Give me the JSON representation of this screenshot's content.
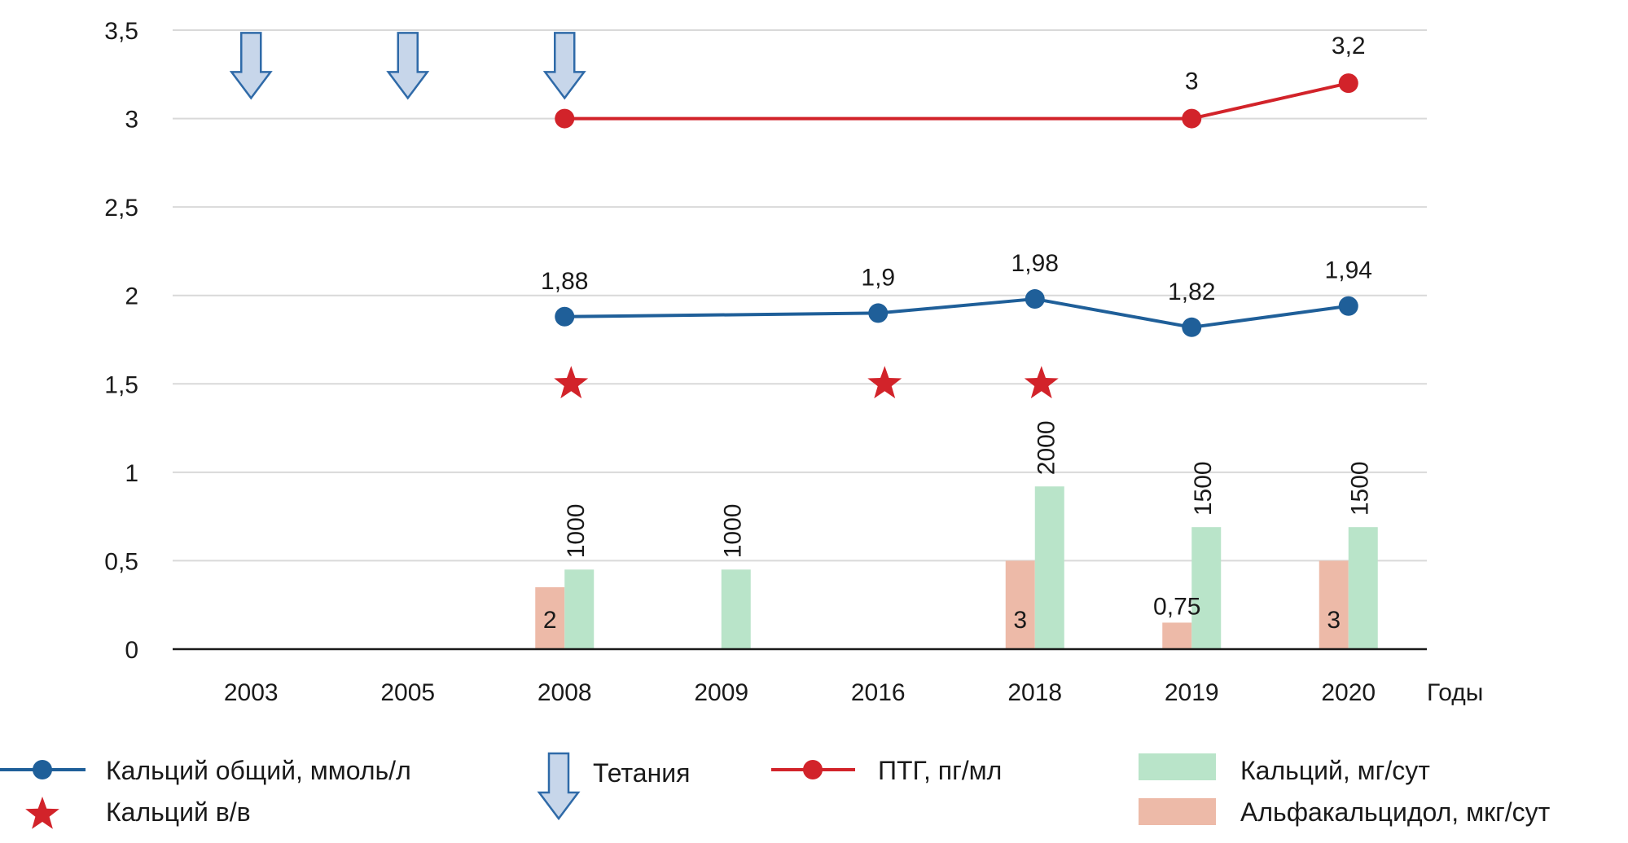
{
  "chart_data": {
    "type": "bar",
    "categories": [
      "2003",
      "2005",
      "2008",
      "2009",
      "2016",
      "2018",
      "2019",
      "2020"
    ],
    "xlabel": "Годы",
    "ylabel": "",
    "ylim": [
      0,
      3.5
    ],
    "y_ticks": [
      0,
      0.5,
      1,
      1.5,
      2,
      2.5,
      3,
      3.5
    ],
    "y_tick_labels": [
      "0",
      "0,5",
      "1",
      "1,5",
      "2",
      "2,5",
      "3",
      "3,5"
    ],
    "grid": true,
    "colors": {
      "calcium_total": "#1f5f99",
      "ptg": "#d2232a",
      "calcium_iv": "#d2232a",
      "calcium_mg": "#b9e4c9",
      "alfacalcidol": "#edbaa8",
      "tetany_fill": "#c7d6ea",
      "tetany_stroke": "#2f6aa8",
      "grid": "#d9d9d9",
      "axis": "#1a1a1a"
    },
    "series": [
      {
        "name": "Альфакальцидол, мкг/сут",
        "kind": "bar",
        "values": [
          null,
          null,
          0.35,
          null,
          null,
          0.5,
          0.15,
          0.5
        ],
        "labels": [
          null,
          null,
          "2",
          null,
          null,
          "3",
          "0,75",
          "3"
        ]
      },
      {
        "name": "Кальций, мг/сут",
        "kind": "bar",
        "values": [
          null,
          null,
          0.45,
          0.45,
          null,
          0.92,
          0.69,
          0.69
        ],
        "labels": [
          null,
          null,
          "1000",
          "1000",
          null,
          "2000",
          "1500",
          "1500"
        ]
      },
      {
        "name": "Кальций общий, ммоль/л",
        "kind": "line",
        "values": [
          null,
          null,
          1.88,
          null,
          1.9,
          1.98,
          1.82,
          1.94
        ],
        "labels": [
          null,
          null,
          "1,88",
          null,
          "1,9",
          "1,98",
          "1,82",
          "1,94"
        ]
      },
      {
        "name": "ПТГ, пг/мл",
        "kind": "line",
        "values": [
          null,
          null,
          3.0,
          null,
          null,
          null,
          3.0,
          3.2
        ],
        "labels": [
          null,
          null,
          null,
          null,
          null,
          null,
          "3",
          "3,2"
        ]
      },
      {
        "name": "Кальций в/в",
        "kind": "marker-star",
        "values": [
          null,
          null,
          1.5,
          null,
          1.5,
          1.5,
          null,
          null
        ]
      },
      {
        "name": "Тетания",
        "kind": "marker-arrow",
        "values": [
          3.3,
          3.3,
          3.3,
          null,
          null,
          null,
          null,
          null
        ]
      }
    ],
    "legend": {
      "placement": "bottom",
      "items": [
        {
          "key": "calcium_total",
          "label": "Кальций общий, ммоль/л"
        },
        {
          "key": "tetany",
          "label": "Тетания"
        },
        {
          "key": "ptg",
          "label": "ПТГ, пг/мл"
        },
        {
          "key": "calcium_mg",
          "label": "Кальций, мг/сут"
        },
        {
          "key": "calcium_iv",
          "label": "Кальций в/в"
        },
        {
          "key": "alfacalcidol",
          "label": "Альфакальцидол, мкг/сут"
        }
      ]
    }
  }
}
